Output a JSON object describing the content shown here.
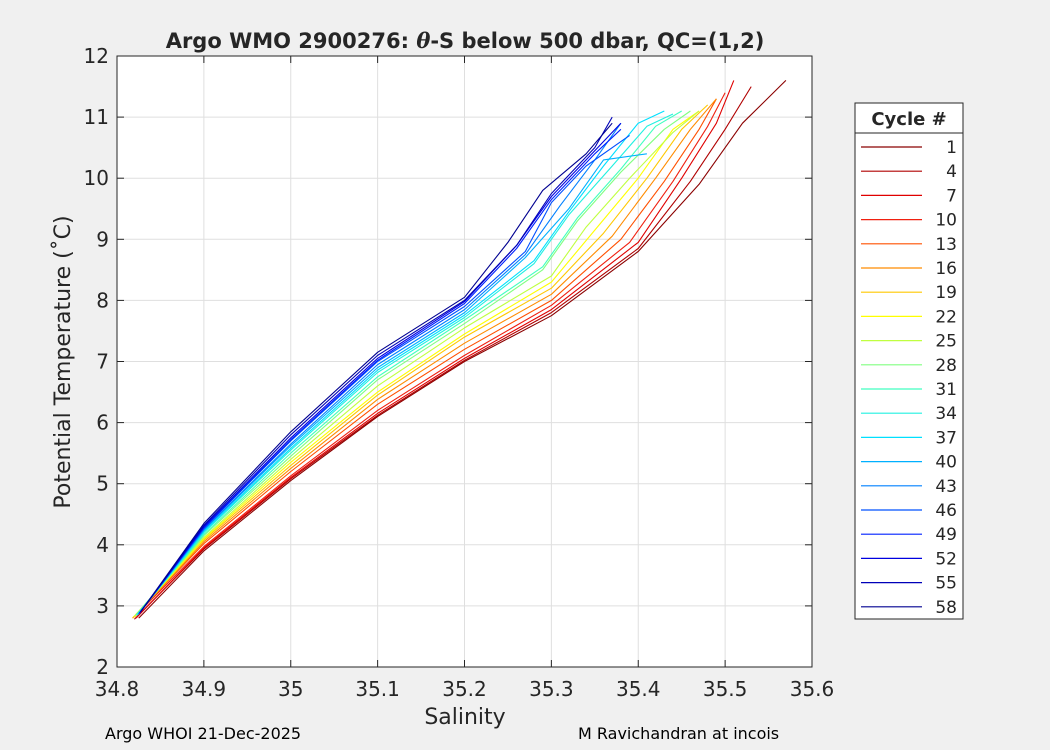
{
  "chart_data": {
    "type": "line",
    "title": "Argo WMO 2900276: θ-S below 500 dbar,  QC=(1,2)",
    "title_parts": {
      "prefix": "Argo WMO 2900276: ",
      "theta": "θ",
      "suffix": "-S below 500 dbar,  QC=(1,2)"
    },
    "xlabel": "Salinity",
    "ylabel": "Potential Temperature (˚C)",
    "xlim": [
      34.8,
      35.6
    ],
    "ylim": [
      2,
      12
    ],
    "xticks": [
      34.8,
      34.9,
      35.0,
      35.1,
      35.2,
      35.3,
      35.4,
      35.5,
      35.6
    ],
    "xtick_labels": [
      "34.8",
      "34.9",
      "35",
      "35.1",
      "35.2",
      "35.3",
      "35.4",
      "35.5",
      "35.6"
    ],
    "yticks": [
      2,
      3,
      4,
      5,
      6,
      7,
      8,
      9,
      10,
      11,
      12
    ],
    "ytick_labels": [
      "2",
      "3",
      "4",
      "5",
      "6",
      "7",
      "8",
      "9",
      "10",
      "11",
      "12"
    ],
    "grid": true,
    "legend": {
      "title": "Cycle #",
      "placement": "outside-right",
      "entries": [
        {
          "label": "1",
          "color": "#8b0000"
        },
        {
          "label": "4",
          "color": "#b00000"
        },
        {
          "label": "7",
          "color": "#e00000"
        },
        {
          "label": "10",
          "color": "#f02010"
        },
        {
          "label": "13",
          "color": "#ff5000"
        },
        {
          "label": "16",
          "color": "#ff8c00"
        },
        {
          "label": "19",
          "color": "#ffc800"
        },
        {
          "label": "22",
          "color": "#ffff00"
        },
        {
          "label": "25",
          "color": "#c0ff40"
        },
        {
          "label": "28",
          "color": "#80ff80"
        },
        {
          "label": "31",
          "color": "#40ffc0"
        },
        {
          "label": "34",
          "color": "#20f0e0"
        },
        {
          "label": "37",
          "color": "#00e0ff"
        },
        {
          "label": "40",
          "color": "#00b0ff"
        },
        {
          "label": "43",
          "color": "#0080ff"
        },
        {
          "label": "46",
          "color": "#0050ff"
        },
        {
          "label": "49",
          "color": "#0020ff"
        },
        {
          "label": "52",
          "color": "#0000e0"
        },
        {
          "label": "55",
          "color": "#0000b8"
        },
        {
          "label": "58",
          "color": "#000090"
        }
      ]
    },
    "series": [
      {
        "name": "1",
        "color": "#8b0000",
        "points": [
          [
            34.825,
            2.8
          ],
          [
            34.9,
            3.9
          ],
          [
            35.0,
            5.05
          ],
          [
            35.1,
            6.1
          ],
          [
            35.2,
            7.0
          ],
          [
            35.3,
            7.75
          ],
          [
            35.4,
            8.8
          ],
          [
            35.47,
            9.9
          ],
          [
            35.52,
            10.9
          ],
          [
            35.57,
            11.6
          ]
        ]
      },
      {
        "name": "4",
        "color": "#b00000",
        "points": [
          [
            34.82,
            2.78
          ],
          [
            34.9,
            3.93
          ],
          [
            35.0,
            5.08
          ],
          [
            35.1,
            6.12
          ],
          [
            35.2,
            7.02
          ],
          [
            35.3,
            7.8
          ],
          [
            35.4,
            8.85
          ],
          [
            35.46,
            9.95
          ],
          [
            35.5,
            10.8
          ],
          [
            35.53,
            11.5
          ]
        ]
      },
      {
        "name": "7",
        "color": "#e00000",
        "points": [
          [
            34.822,
            2.8
          ],
          [
            34.9,
            3.95
          ],
          [
            35.0,
            5.1
          ],
          [
            35.1,
            6.15
          ],
          [
            35.2,
            7.05
          ],
          [
            35.3,
            7.85
          ],
          [
            35.4,
            8.95
          ],
          [
            35.45,
            10.0
          ],
          [
            35.49,
            10.9
          ],
          [
            35.51,
            11.6
          ]
        ]
      },
      {
        "name": "10",
        "color": "#f02010",
        "points": [
          [
            34.82,
            2.82
          ],
          [
            34.9,
            3.97
          ],
          [
            35.0,
            5.13
          ],
          [
            35.1,
            6.2
          ],
          [
            35.2,
            7.1
          ],
          [
            35.3,
            7.92
          ],
          [
            35.39,
            8.95
          ],
          [
            35.44,
            9.95
          ],
          [
            35.48,
            10.85
          ],
          [
            35.5,
            11.4
          ]
        ]
      },
      {
        "name": "13",
        "color": "#ff5000",
        "points": [
          [
            34.818,
            2.8
          ],
          [
            34.9,
            4.02
          ],
          [
            35.0,
            5.2
          ],
          [
            35.1,
            6.3
          ],
          [
            35.2,
            7.2
          ],
          [
            35.3,
            8.0
          ],
          [
            35.38,
            9.0
          ],
          [
            35.43,
            9.95
          ],
          [
            35.47,
            10.8
          ],
          [
            35.49,
            11.3
          ]
        ]
      },
      {
        "name": "16",
        "color": "#ff8c00",
        "points": [
          [
            34.82,
            2.82
          ],
          [
            34.9,
            4.05
          ],
          [
            35.0,
            5.25
          ],
          [
            35.1,
            6.38
          ],
          [
            35.2,
            7.3
          ],
          [
            35.3,
            8.1
          ],
          [
            35.37,
            9.05
          ],
          [
            35.42,
            10.0
          ],
          [
            35.46,
            10.8
          ],
          [
            35.49,
            11.3
          ]
        ]
      },
      {
        "name": "19",
        "color": "#ffc800",
        "points": [
          [
            34.818,
            2.8
          ],
          [
            34.9,
            4.08
          ],
          [
            35.0,
            5.3
          ],
          [
            35.1,
            6.45
          ],
          [
            35.2,
            7.4
          ],
          [
            35.3,
            8.2
          ],
          [
            35.36,
            9.1
          ],
          [
            35.41,
            10.0
          ],
          [
            35.45,
            10.8
          ],
          [
            35.48,
            11.2
          ]
        ]
      },
      {
        "name": "22",
        "color": "#ffff00",
        "points": [
          [
            34.82,
            2.82
          ],
          [
            34.9,
            4.1
          ],
          [
            35.0,
            5.35
          ],
          [
            35.1,
            6.5
          ],
          [
            35.2,
            7.45
          ],
          [
            35.3,
            8.3
          ],
          [
            35.35,
            9.15
          ],
          [
            35.4,
            10.0
          ],
          [
            35.44,
            10.8
          ],
          [
            35.47,
            11.1
          ]
        ]
      },
      {
        "name": "25",
        "color": "#c0ff40",
        "points": [
          [
            34.82,
            2.83
          ],
          [
            34.9,
            4.12
          ],
          [
            35.0,
            5.4
          ],
          [
            35.1,
            6.6
          ],
          [
            35.2,
            7.55
          ],
          [
            35.3,
            8.4
          ],
          [
            35.34,
            9.2
          ],
          [
            35.39,
            10.0
          ],
          [
            35.44,
            10.75
          ],
          [
            35.47,
            11.1
          ]
        ]
      },
      {
        "name": "28",
        "color": "#80ff80",
        "points": [
          [
            34.822,
            2.84
          ],
          [
            34.9,
            4.15
          ],
          [
            35.0,
            5.45
          ],
          [
            35.1,
            6.7
          ],
          [
            35.2,
            7.62
          ],
          [
            35.29,
            8.5
          ],
          [
            35.33,
            9.3
          ],
          [
            35.38,
            10.1
          ],
          [
            35.43,
            10.8
          ],
          [
            35.46,
            11.1
          ]
        ]
      },
      {
        "name": "31",
        "color": "#40ffc0",
        "points": [
          [
            34.822,
            2.85
          ],
          [
            34.9,
            4.17
          ],
          [
            35.0,
            5.5
          ],
          [
            35.1,
            6.75
          ],
          [
            35.2,
            7.68
          ],
          [
            35.29,
            8.55
          ],
          [
            35.33,
            9.35
          ],
          [
            35.38,
            10.15
          ],
          [
            35.42,
            10.85
          ],
          [
            35.45,
            11.1
          ]
        ]
      },
      {
        "name": "34",
        "color": "#20f0e0",
        "points": [
          [
            34.823,
            2.85
          ],
          [
            34.9,
            4.2
          ],
          [
            35.0,
            5.55
          ],
          [
            35.1,
            6.82
          ],
          [
            35.2,
            7.72
          ],
          [
            35.28,
            8.6
          ],
          [
            35.32,
            9.4
          ],
          [
            35.37,
            10.2
          ],
          [
            35.41,
            10.85
          ],
          [
            35.44,
            11.05
          ]
        ]
      },
      {
        "name": "37",
        "color": "#00e0ff",
        "points": [
          [
            34.824,
            2.86
          ],
          [
            34.9,
            4.22
          ],
          [
            35.0,
            5.58
          ],
          [
            35.1,
            6.86
          ],
          [
            35.2,
            7.76
          ],
          [
            35.28,
            8.65
          ],
          [
            35.32,
            9.45
          ],
          [
            35.36,
            10.2
          ],
          [
            35.4,
            10.9
          ],
          [
            35.43,
            11.1
          ]
        ]
      },
      {
        "name": "40",
        "color": "#00b0ff",
        "points": [
          [
            34.824,
            2.86
          ],
          [
            34.9,
            4.24
          ],
          [
            35.0,
            5.62
          ],
          [
            35.1,
            6.9
          ],
          [
            35.2,
            7.8
          ],
          [
            35.27,
            8.7
          ],
          [
            35.32,
            9.5
          ],
          [
            35.36,
            10.3
          ],
          [
            35.41,
            10.4
          ]
        ]
      },
      {
        "name": "43",
        "color": "#0080ff",
        "points": [
          [
            34.825,
            2.87
          ],
          [
            34.9,
            4.25
          ],
          [
            35.0,
            5.65
          ],
          [
            35.1,
            6.95
          ],
          [
            35.2,
            7.85
          ],
          [
            35.27,
            8.75
          ],
          [
            35.31,
            9.55
          ],
          [
            35.35,
            10.3
          ],
          [
            35.38,
            10.9
          ]
        ]
      },
      {
        "name": "46",
        "color": "#0050ff",
        "points": [
          [
            34.825,
            2.87
          ],
          [
            34.9,
            4.27
          ],
          [
            35.0,
            5.7
          ],
          [
            35.1,
            7.0
          ],
          [
            35.2,
            7.9
          ],
          [
            35.27,
            8.8
          ],
          [
            35.3,
            9.6
          ],
          [
            35.34,
            10.2
          ],
          [
            35.39,
            10.7
          ]
        ]
      },
      {
        "name": "49",
        "color": "#0020ff",
        "points": [
          [
            34.826,
            2.88
          ],
          [
            34.9,
            4.28
          ],
          [
            35.0,
            5.72
          ],
          [
            35.1,
            7.02
          ],
          [
            35.2,
            7.95
          ],
          [
            35.26,
            8.85
          ],
          [
            35.3,
            9.65
          ],
          [
            35.35,
            10.4
          ],
          [
            35.38,
            10.8
          ]
        ]
      },
      {
        "name": "52",
        "color": "#0000e0",
        "points": [
          [
            34.826,
            2.88
          ],
          [
            34.9,
            4.3
          ],
          [
            35.0,
            5.75
          ],
          [
            35.1,
            7.05
          ],
          [
            35.2,
            7.98
          ],
          [
            35.26,
            8.9
          ],
          [
            35.3,
            9.7
          ],
          [
            35.34,
            10.3
          ],
          [
            35.38,
            10.9
          ]
        ]
      },
      {
        "name": "55",
        "color": "#0000b8",
        "points": [
          [
            34.827,
            2.9
          ],
          [
            34.9,
            4.32
          ],
          [
            35.0,
            5.8
          ],
          [
            35.1,
            7.1
          ],
          [
            35.2,
            8.0
          ],
          [
            35.26,
            8.9
          ],
          [
            35.3,
            9.75
          ],
          [
            35.35,
            10.5
          ],
          [
            35.37,
            11.0
          ]
        ]
      },
      {
        "name": "58",
        "color": "#000090",
        "points": [
          [
            34.827,
            2.9
          ],
          [
            34.9,
            4.35
          ],
          [
            35.0,
            5.85
          ],
          [
            35.1,
            7.15
          ],
          [
            35.2,
            8.05
          ],
          [
            35.25,
            8.95
          ],
          [
            35.29,
            9.8
          ],
          [
            35.34,
            10.4
          ],
          [
            35.37,
            10.9
          ]
        ]
      }
    ]
  },
  "footer": {
    "left": "Argo WHOI 21-Dec-2025",
    "right": "M Ravichandran at incois"
  }
}
